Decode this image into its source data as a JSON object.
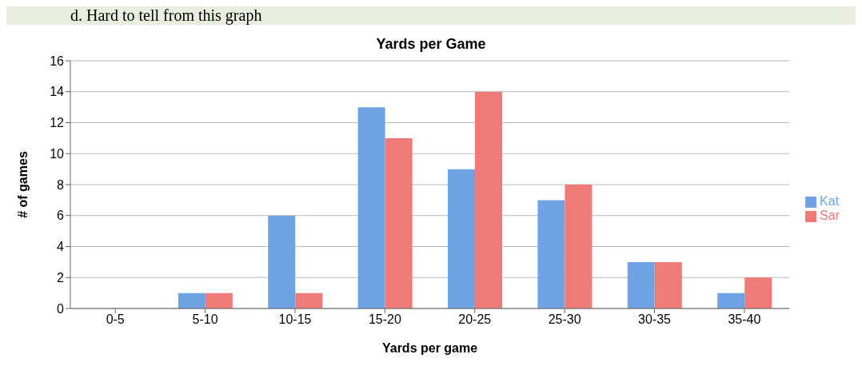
{
  "chart_data": {
    "type": "bar",
    "title": "Yards per Game",
    "xlabel": "Yards per game",
    "ylabel": "# of games",
    "annotations": [
      "d.  Hard to tell from this graph"
    ],
    "categories": [
      "0-5",
      "5-10",
      "10-15",
      "15-20",
      "20-25",
      "25-30",
      "30-35",
      "35-40"
    ],
    "series": [
      {
        "name": "Kat",
        "color": "#6fa3e6",
        "values": [
          0,
          1,
          6,
          13,
          9,
          7,
          3,
          1
        ]
      },
      {
        "name": "Sar",
        "color": "#ee7b77",
        "values": [
          0,
          1,
          1,
          11,
          14,
          8,
          3,
          2
        ]
      }
    ],
    "ylim": [
      0,
      16
    ],
    "yticks": [
      0,
      2,
      4,
      6,
      8,
      10,
      12,
      14,
      16
    ],
    "grid": "y",
    "legend": "right"
  }
}
